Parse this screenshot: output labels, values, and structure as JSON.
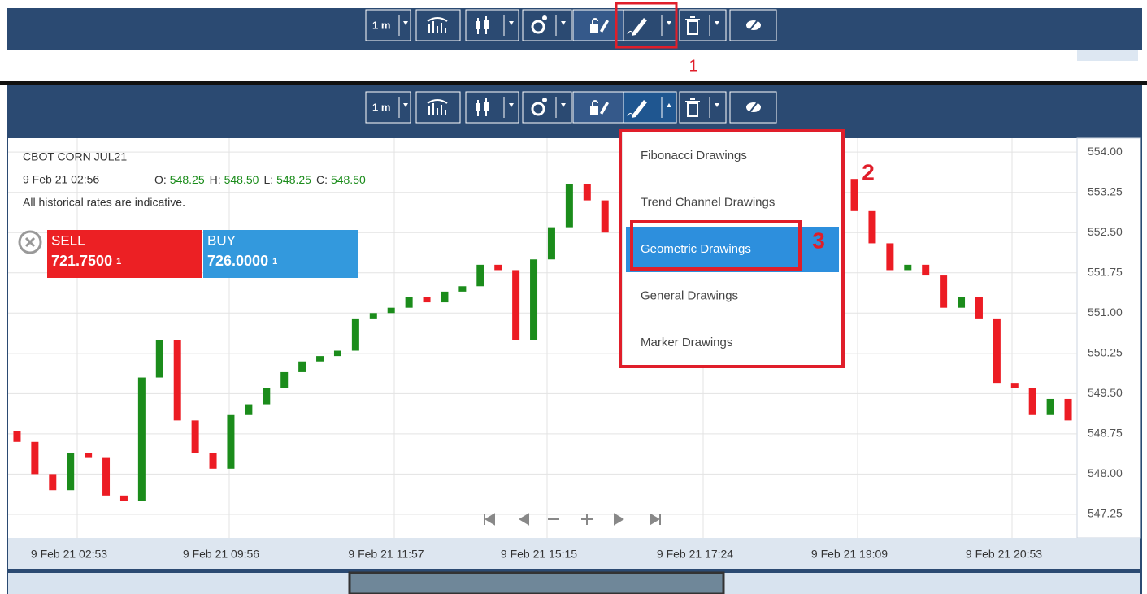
{
  "annotations": {
    "step_1": "1",
    "step_2": "2",
    "step_3": "3"
  },
  "toolbar": {
    "interval": "1 m"
  },
  "instrument": {
    "title": "CBOT CORN JUL21",
    "time": "9 Feb 21 02:56",
    "ohlc": [
      {
        "label": "O:",
        "value": "548.25"
      },
      {
        "label": "H:",
        "value": "548.50"
      },
      {
        "label": "L:",
        "value": "548.25"
      },
      {
        "label": "C:",
        "value": "548.50"
      }
    ],
    "note": "All historical rates are indicative."
  },
  "trade": {
    "sell": {
      "label": "SELL",
      "price": "721.7500",
      "qty": "1"
    },
    "buy": {
      "label": "BUY",
      "price": "726.0000",
      "qty": "1"
    }
  },
  "menu": {
    "items": [
      "Fibonacci Drawings",
      "Trend Channel Drawings",
      "Geometric Drawings",
      "General Drawings",
      "Marker Drawings"
    ],
    "selected_index": 2
  },
  "chart_data": {
    "type": "candlestick",
    "open": [
      548.8,
      548.6,
      548.0,
      547.7,
      548.4,
      548.3,
      547.6,
      547.5,
      549.8,
      550.5,
      549.0,
      548.4,
      548.1,
      549.1,
      549.3,
      549.6,
      549.9,
      550.1,
      550.2,
      550.3,
      550.9,
      551.0,
      551.1,
      551.3,
      551.2,
      551.4,
      551.5,
      551.9,
      551.8,
      550.5,
      552.0,
      552.6,
      553.4,
      553.1,
      552.5,
      552.2,
      552.4,
      552.7,
      552.9,
      553.0,
      553.1,
      553.2,
      553.3,
      553.4,
      553.5,
      553.6,
      553.7,
      553.5,
      552.9,
      552.3,
      551.8,
      551.9,
      551.7,
      551.1,
      551.3,
      550.9,
      549.7,
      549.6,
      549.1,
      549.4
    ],
    "close": [
      548.6,
      548.0,
      547.7,
      548.4,
      548.3,
      547.6,
      547.5,
      549.8,
      550.5,
      549.0,
      548.4,
      548.1,
      549.1,
      549.3,
      549.6,
      549.9,
      550.1,
      550.2,
      550.3,
      550.9,
      551.0,
      551.1,
      551.3,
      551.2,
      551.4,
      551.5,
      551.9,
      551.8,
      550.5,
      552.0,
      552.6,
      553.4,
      553.1,
      552.5,
      552.2,
      552.4,
      552.7,
      552.9,
      553.0,
      553.1,
      553.2,
      553.3,
      553.4,
      553.5,
      553.6,
      553.7,
      553.5,
      552.9,
      552.3,
      551.8,
      551.9,
      551.7,
      551.1,
      551.3,
      550.9,
      549.7,
      549.6,
      549.1,
      549.4,
      549.0
    ],
    "up_color": "#1b8c1b",
    "down_color": "#ec1c24",
    "ylim": [
      546.81,
      554.26
    ],
    "yticks": [
      {
        "value": 554,
        "label": "554.00"
      },
      553.25,
      {
        "value": 552.5,
        "label": "552.50"
      },
      551.75,
      {
        "value": 551,
        "label": "551.00"
      },
      550.25,
      {
        "value": 549.5,
        "label": "549.50"
      },
      548.75,
      {
        "value": 548,
        "label": "548.00"
      },
      547.25
    ],
    "x_labels": [
      "9 Feb 21 02:53",
      "9 Feb 21 09:56",
      "9 Feb 21 11:57",
      "9 Feb 21 15:15",
      "9 Feb 21 17:24",
      "9 Feb 21 19:09",
      "9 Feb 21 20:53"
    ],
    "grid": true
  }
}
